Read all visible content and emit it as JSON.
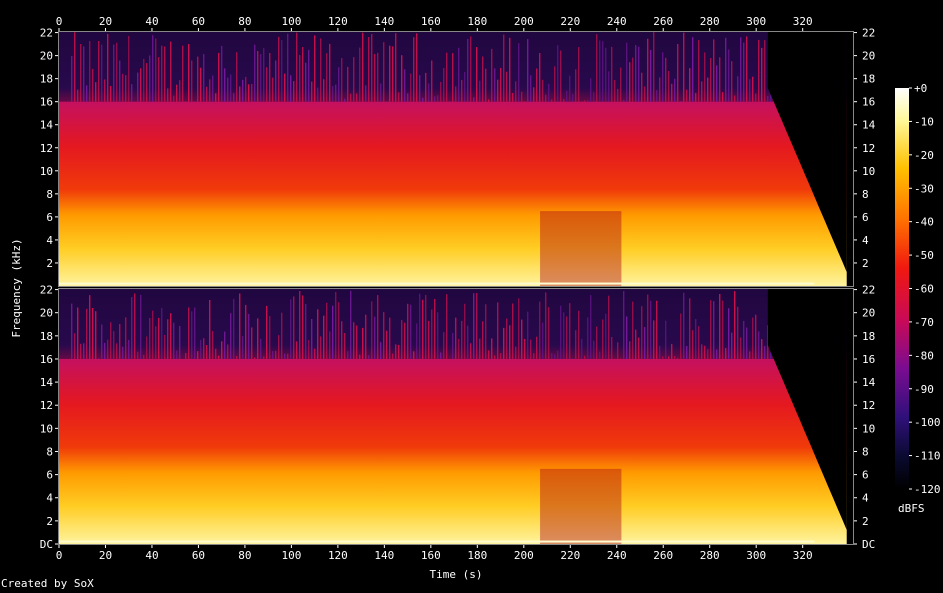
{
  "chart_data": {
    "type": "heatmap",
    "subtype": "spectrogram",
    "xlabel": "Time (s)",
    "ylabel": "Frequency (kHz)",
    "x_ticks": [
      "0",
      "20",
      "40",
      "60",
      "80",
      "100",
      "120",
      "140",
      "160",
      "180",
      "200",
      "220",
      "240",
      "260",
      "280",
      "300",
      "320"
    ],
    "x_range": [
      0,
      339
    ],
    "y_ticks_upper": [
      "2",
      "4",
      "6",
      "8",
      "10",
      "12",
      "14",
      "16",
      "18",
      "20",
      "22"
    ],
    "y_ticks_lower": [
      "DC",
      "2",
      "4",
      "6",
      "8",
      "10",
      "12",
      "14",
      "16",
      "18",
      "20",
      "22"
    ],
    "y_range_khz": [
      0,
      22.05
    ],
    "channels": 2,
    "colorbar": {
      "label": "dBFS",
      "ticks": [
        "+0",
        "-10",
        "-20",
        "-30",
        "-40",
        "-50",
        "-60",
        "-70",
        "-80",
        "-90",
        "-100",
        "-110",
        "-120"
      ],
      "range": [
        -120,
        0
      ]
    },
    "lowpass_cutoff_khz": 16,
    "segments": [
      {
        "t": [
          0,
          5
        ],
        "level": "silence-start"
      },
      {
        "t": [
          5,
          207
        ],
        "level": "loud"
      },
      {
        "t": [
          207,
          242
        ],
        "level": "sparse-highs"
      },
      {
        "t": [
          242,
          305
        ],
        "level": "loud"
      },
      {
        "t": [
          305,
          339
        ],
        "level": "fade-out"
      }
    ],
    "grid": false
  },
  "footer": {
    "text": "Created by SoX"
  }
}
